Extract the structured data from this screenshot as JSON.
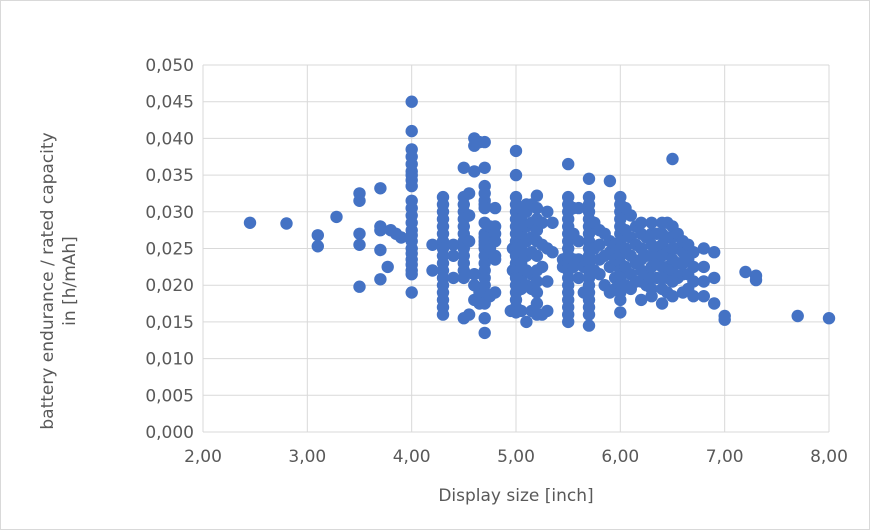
{
  "chart_data": {
    "type": "scatter",
    "xlabel": "Display size [inch]",
    "ylabel_lines": [
      "battery endurance / rated capacity",
      "in [h/mAh]"
    ],
    "xlim": [
      2,
      8
    ],
    "ylim": [
      0,
      0.05
    ],
    "x_ticks": [
      "2,00",
      "3,00",
      "4,00",
      "5,00",
      "6,00",
      "7,00",
      "8,00"
    ],
    "y_ticks": [
      "0,000",
      "0,005",
      "0,010",
      "0,015",
      "0,020",
      "0,025",
      "0,030",
      "0,035",
      "0,040",
      "0,045",
      "0,050"
    ],
    "x_tick_values": [
      2,
      3,
      4,
      5,
      6,
      7,
      8
    ],
    "y_tick_values": [
      0,
      0.005,
      0.01,
      0.015,
      0.02,
      0.025,
      0.03,
      0.035,
      0.04,
      0.045,
      0.05
    ],
    "grid": true,
    "marker_color": "#4472C4",
    "points": [
      [
        2.45,
        0.0285
      ],
      [
        2.8,
        0.0284
      ],
      [
        3.1,
        0.0268
      ],
      [
        3.1,
        0.0253
      ],
      [
        3.28,
        0.0293
      ],
      [
        3.5,
        0.0325
      ],
      [
        3.5,
        0.0315
      ],
      [
        3.5,
        0.027
      ],
      [
        3.5,
        0.0255
      ],
      [
        3.5,
        0.0198
      ],
      [
        3.7,
        0.0332
      ],
      [
        3.7,
        0.028
      ],
      [
        3.7,
        0.0275
      ],
      [
        3.7,
        0.0248
      ],
      [
        3.7,
        0.0208
      ],
      [
        3.77,
        0.0225
      ],
      [
        3.8,
        0.0275
      ],
      [
        3.85,
        0.027
      ],
      [
        3.9,
        0.0265
      ],
      [
        4.0,
        0.045
      ],
      [
        4.0,
        0.041
      ],
      [
        4.0,
        0.0385
      ],
      [
        4.0,
        0.0375
      ],
      [
        4.0,
        0.0365
      ],
      [
        4.0,
        0.0355
      ],
      [
        4.0,
        0.035
      ],
      [
        4.0,
        0.0343
      ],
      [
        4.0,
        0.0335
      ],
      [
        4.0,
        0.0315
      ],
      [
        4.0,
        0.0305
      ],
      [
        4.0,
        0.0295
      ],
      [
        4.0,
        0.0285
      ],
      [
        4.0,
        0.0275
      ],
      [
        4.0,
        0.0268
      ],
      [
        4.0,
        0.026
      ],
      [
        4.0,
        0.025
      ],
      [
        4.0,
        0.0243
      ],
      [
        4.0,
        0.0235
      ],
      [
        4.0,
        0.0228
      ],
      [
        4.0,
        0.022
      ],
      [
        4.0,
        0.0215
      ],
      [
        4.0,
        0.019
      ],
      [
        4.2,
        0.0255
      ],
      [
        4.2,
        0.022
      ],
      [
        4.3,
        0.032
      ],
      [
        4.3,
        0.031
      ],
      [
        4.3,
        0.03
      ],
      [
        4.3,
        0.029
      ],
      [
        4.3,
        0.028
      ],
      [
        4.3,
        0.027
      ],
      [
        4.3,
        0.026
      ],
      [
        4.3,
        0.025
      ],
      [
        4.3,
        0.024
      ],
      [
        4.3,
        0.023
      ],
      [
        4.3,
        0.022
      ],
      [
        4.3,
        0.021
      ],
      [
        4.3,
        0.02
      ],
      [
        4.3,
        0.019
      ],
      [
        4.3,
        0.018
      ],
      [
        4.3,
        0.017
      ],
      [
        4.3,
        0.016
      ],
      [
        4.4,
        0.0255
      ],
      [
        4.4,
        0.024
      ],
      [
        4.4,
        0.021
      ],
      [
        4.5,
        0.036
      ],
      [
        4.5,
        0.032
      ],
      [
        4.5,
        0.031
      ],
      [
        4.5,
        0.03
      ],
      [
        4.5,
        0.029
      ],
      [
        4.5,
        0.028
      ],
      [
        4.5,
        0.027
      ],
      [
        4.5,
        0.026
      ],
      [
        4.5,
        0.025
      ],
      [
        4.5,
        0.024
      ],
      [
        4.5,
        0.023
      ],
      [
        4.5,
        0.022
      ],
      [
        4.5,
        0.021
      ],
      [
        4.5,
        0.0155
      ],
      [
        4.55,
        0.0325
      ],
      [
        4.55,
        0.0295
      ],
      [
        4.55,
        0.026
      ],
      [
        4.55,
        0.016
      ],
      [
        4.6,
        0.04
      ],
      [
        4.6,
        0.039
      ],
      [
        4.6,
        0.0355
      ],
      [
        4.6,
        0.0215
      ],
      [
        4.6,
        0.02
      ],
      [
        4.6,
        0.018
      ],
      [
        4.65,
        0.0395
      ],
      [
        4.65,
        0.019
      ],
      [
        4.65,
        0.0175
      ],
      [
        4.7,
        0.0395
      ],
      [
        4.7,
        0.036
      ],
      [
        4.7,
        0.0335
      ],
      [
        4.7,
        0.0325
      ],
      [
        4.7,
        0.0315
      ],
      [
        4.7,
        0.031
      ],
      [
        4.7,
        0.0305
      ],
      [
        4.7,
        0.0285
      ],
      [
        4.7,
        0.027
      ],
      [
        4.7,
        0.0265
      ],
      [
        4.7,
        0.026
      ],
      [
        4.7,
        0.0255
      ],
      [
        4.7,
        0.025
      ],
      [
        4.7,
        0.024
      ],
      [
        4.7,
        0.023
      ],
      [
        4.7,
        0.022
      ],
      [
        4.7,
        0.021
      ],
      [
        4.7,
        0.02
      ],
      [
        4.7,
        0.019
      ],
      [
        4.7,
        0.0175
      ],
      [
        4.7,
        0.0155
      ],
      [
        4.7,
        0.0135
      ],
      [
        4.75,
        0.028
      ],
      [
        4.75,
        0.025
      ],
      [
        4.75,
        0.0185
      ],
      [
        4.8,
        0.0305
      ],
      [
        4.8,
        0.028
      ],
      [
        4.8,
        0.027
      ],
      [
        4.8,
        0.026
      ],
      [
        4.8,
        0.024
      ],
      [
        4.8,
        0.0235
      ],
      [
        4.8,
        0.019
      ],
      [
        4.95,
        0.0165
      ],
      [
        4.97,
        0.025
      ],
      [
        4.97,
        0.022
      ],
      [
        5.0,
        0.0383
      ],
      [
        5.0,
        0.035
      ],
      [
        5.0,
        0.032
      ],
      [
        5.0,
        0.031
      ],
      [
        5.0,
        0.03
      ],
      [
        5.0,
        0.029
      ],
      [
        5.0,
        0.028
      ],
      [
        5.0,
        0.027
      ],
      [
        5.0,
        0.026
      ],
      [
        5.0,
        0.025
      ],
      [
        5.0,
        0.024
      ],
      [
        5.0,
        0.023
      ],
      [
        5.0,
        0.022
      ],
      [
        5.0,
        0.021
      ],
      [
        5.0,
        0.02
      ],
      [
        5.0,
        0.019
      ],
      [
        5.0,
        0.018
      ],
      [
        5.0,
        0.017
      ],
      [
        5.0,
        0.0163
      ],
      [
        5.05,
        0.0305
      ],
      [
        5.05,
        0.029
      ],
      [
        5.05,
        0.027
      ],
      [
        5.05,
        0.025
      ],
      [
        5.05,
        0.023
      ],
      [
        5.05,
        0.021
      ],
      [
        5.05,
        0.0195
      ],
      [
        5.05,
        0.0165
      ],
      [
        5.1,
        0.031
      ],
      [
        5.1,
        0.03
      ],
      [
        5.1,
        0.028
      ],
      [
        5.1,
        0.026
      ],
      [
        5.1,
        0.024
      ],
      [
        5.1,
        0.022
      ],
      [
        5.1,
        0.02
      ],
      [
        5.1,
        0.015
      ],
      [
        5.15,
        0.031
      ],
      [
        5.15,
        0.0285
      ],
      [
        5.15,
        0.0265
      ],
      [
        5.15,
        0.0245
      ],
      [
        5.15,
        0.0215
      ],
      [
        5.15,
        0.0195
      ],
      [
        5.15,
        0.0165
      ],
      [
        5.2,
        0.0322
      ],
      [
        5.2,
        0.0305
      ],
      [
        5.2,
        0.029
      ],
      [
        5.2,
        0.0275
      ],
      [
        5.2,
        0.026
      ],
      [
        5.2,
        0.024
      ],
      [
        5.2,
        0.022
      ],
      [
        5.2,
        0.0205
      ],
      [
        5.2,
        0.019
      ],
      [
        5.2,
        0.0175
      ],
      [
        5.2,
        0.016
      ],
      [
        5.25,
        0.0285
      ],
      [
        5.25,
        0.0255
      ],
      [
        5.25,
        0.0225
      ],
      [
        5.25,
        0.016
      ],
      [
        5.3,
        0.03
      ],
      [
        5.3,
        0.025
      ],
      [
        5.3,
        0.0205
      ],
      [
        5.3,
        0.0165
      ],
      [
        5.35,
        0.0285
      ],
      [
        5.35,
        0.0245
      ],
      [
        5.45,
        0.0235
      ],
      [
        5.45,
        0.0225
      ],
      [
        5.5,
        0.0365
      ],
      [
        5.5,
        0.032
      ],
      [
        5.5,
        0.031
      ],
      [
        5.5,
        0.03
      ],
      [
        5.5,
        0.029
      ],
      [
        5.5,
        0.028
      ],
      [
        5.5,
        0.027
      ],
      [
        5.5,
        0.026
      ],
      [
        5.5,
        0.025
      ],
      [
        5.5,
        0.024
      ],
      [
        5.5,
        0.023
      ],
      [
        5.5,
        0.022
      ],
      [
        5.5,
        0.021
      ],
      [
        5.5,
        0.02
      ],
      [
        5.5,
        0.019
      ],
      [
        5.5,
        0.018
      ],
      [
        5.5,
        0.017
      ],
      [
        5.5,
        0.016
      ],
      [
        5.5,
        0.015
      ],
      [
        5.55,
        0.0305
      ],
      [
        5.55,
        0.027
      ],
      [
        5.55,
        0.0235
      ],
      [
        5.55,
        0.0225
      ],
      [
        5.6,
        0.0305
      ],
      [
        5.6,
        0.026
      ],
      [
        5.6,
        0.0235
      ],
      [
        5.6,
        0.021
      ],
      [
        5.65,
        0.0225
      ],
      [
        5.65,
        0.019
      ],
      [
        5.7,
        0.0345
      ],
      [
        5.7,
        0.032
      ],
      [
        5.7,
        0.031
      ],
      [
        5.7,
        0.03
      ],
      [
        5.7,
        0.029
      ],
      [
        5.7,
        0.028
      ],
      [
        5.7,
        0.027
      ],
      [
        5.7,
        0.026
      ],
      [
        5.7,
        0.025
      ],
      [
        5.7,
        0.024
      ],
      [
        5.7,
        0.023
      ],
      [
        5.7,
        0.022
      ],
      [
        5.7,
        0.021
      ],
      [
        5.7,
        0.02
      ],
      [
        5.7,
        0.019
      ],
      [
        5.7,
        0.018
      ],
      [
        5.7,
        0.017
      ],
      [
        5.7,
        0.016
      ],
      [
        5.7,
        0.0145
      ],
      [
        5.75,
        0.0285
      ],
      [
        5.75,
        0.025
      ],
      [
        5.75,
        0.022
      ],
      [
        5.8,
        0.0275
      ],
      [
        5.8,
        0.0255
      ],
      [
        5.8,
        0.0235
      ],
      [
        5.8,
        0.0215
      ],
      [
        5.85,
        0.027
      ],
      [
        5.85,
        0.024
      ],
      [
        5.85,
        0.02
      ],
      [
        5.9,
        0.0342
      ],
      [
        5.9,
        0.026
      ],
      [
        5.9,
        0.0245
      ],
      [
        5.9,
        0.0225
      ],
      [
        5.9,
        0.019
      ],
      [
        5.95,
        0.0255
      ],
      [
        5.95,
        0.0235
      ],
      [
        5.95,
        0.021
      ],
      [
        5.95,
        0.0195
      ],
      [
        6.0,
        0.032
      ],
      [
        6.0,
        0.031
      ],
      [
        6.0,
        0.03
      ],
      [
        6.0,
        0.029
      ],
      [
        6.0,
        0.028
      ],
      [
        6.0,
        0.027
      ],
      [
        6.0,
        0.026
      ],
      [
        6.0,
        0.025
      ],
      [
        6.0,
        0.024
      ],
      [
        6.0,
        0.023
      ],
      [
        6.0,
        0.022
      ],
      [
        6.0,
        0.021
      ],
      [
        6.0,
        0.02
      ],
      [
        6.0,
        0.019
      ],
      [
        6.0,
        0.018
      ],
      [
        6.0,
        0.0163
      ],
      [
        6.05,
        0.0305
      ],
      [
        6.05,
        0.0275
      ],
      [
        6.05,
        0.025
      ],
      [
        6.05,
        0.0225
      ],
      [
        6.05,
        0.02
      ],
      [
        6.1,
        0.0295
      ],
      [
        6.1,
        0.0265
      ],
      [
        6.1,
        0.024
      ],
      [
        6.1,
        0.0215
      ],
      [
        6.1,
        0.0195
      ],
      [
        6.15,
        0.028
      ],
      [
        6.15,
        0.0255
      ],
      [
        6.15,
        0.023
      ],
      [
        6.15,
        0.0205
      ],
      [
        6.2,
        0.0285
      ],
      [
        6.2,
        0.027
      ],
      [
        6.2,
        0.025
      ],
      [
        6.2,
        0.0235
      ],
      [
        6.2,
        0.022
      ],
      [
        6.2,
        0.0205
      ],
      [
        6.2,
        0.018
      ],
      [
        6.25,
        0.0265
      ],
      [
        6.25,
        0.024
      ],
      [
        6.25,
        0.0215
      ],
      [
        6.25,
        0.02
      ],
      [
        6.3,
        0.0285
      ],
      [
        6.3,
        0.027
      ],
      [
        6.3,
        0.0255
      ],
      [
        6.3,
        0.024
      ],
      [
        6.3,
        0.0225
      ],
      [
        6.3,
        0.021
      ],
      [
        6.3,
        0.0195
      ],
      [
        6.3,
        0.0185
      ],
      [
        6.35,
        0.027
      ],
      [
        6.35,
        0.025
      ],
      [
        6.35,
        0.023
      ],
      [
        6.35,
        0.021
      ],
      [
        6.4,
        0.0285
      ],
      [
        6.4,
        0.027
      ],
      [
        6.4,
        0.0255
      ],
      [
        6.4,
        0.024
      ],
      [
        6.4,
        0.0225
      ],
      [
        6.4,
        0.021
      ],
      [
        6.4,
        0.0195
      ],
      [
        6.4,
        0.0175
      ],
      [
        6.45,
        0.0285
      ],
      [
        6.45,
        0.0265
      ],
      [
        6.45,
        0.0245
      ],
      [
        6.45,
        0.0225
      ],
      [
        6.45,
        0.021
      ],
      [
        6.45,
        0.019
      ],
      [
        6.5,
        0.0372
      ],
      [
        6.5,
        0.028
      ],
      [
        6.5,
        0.0265
      ],
      [
        6.5,
        0.025
      ],
      [
        6.5,
        0.0235
      ],
      [
        6.5,
        0.022
      ],
      [
        6.5,
        0.0205
      ],
      [
        6.5,
        0.0185
      ],
      [
        6.55,
        0.027
      ],
      [
        6.55,
        0.025
      ],
      [
        6.55,
        0.023
      ],
      [
        6.55,
        0.021
      ],
      [
        6.6,
        0.026
      ],
      [
        6.6,
        0.0245
      ],
      [
        6.6,
        0.023
      ],
      [
        6.6,
        0.0215
      ],
      [
        6.6,
        0.019
      ],
      [
        6.65,
        0.0255
      ],
      [
        6.65,
        0.0235
      ],
      [
        6.65,
        0.0215
      ],
      [
        6.65,
        0.0195
      ],
      [
        6.7,
        0.0245
      ],
      [
        6.7,
        0.0225
      ],
      [
        6.7,
        0.0205
      ],
      [
        6.7,
        0.0185
      ],
      [
        6.8,
        0.025
      ],
      [
        6.8,
        0.0225
      ],
      [
        6.8,
        0.0205
      ],
      [
        6.8,
        0.0185
      ],
      [
        6.9,
        0.0245
      ],
      [
        6.9,
        0.021
      ],
      [
        6.9,
        0.0175
      ],
      [
        7.0,
        0.0158
      ],
      [
        7.0,
        0.0153
      ],
      [
        7.2,
        0.0218
      ],
      [
        7.3,
        0.0213
      ],
      [
        7.3,
        0.0207
      ],
      [
        7.7,
        0.0158
      ],
      [
        8.0,
        0.0155
      ]
    ]
  }
}
